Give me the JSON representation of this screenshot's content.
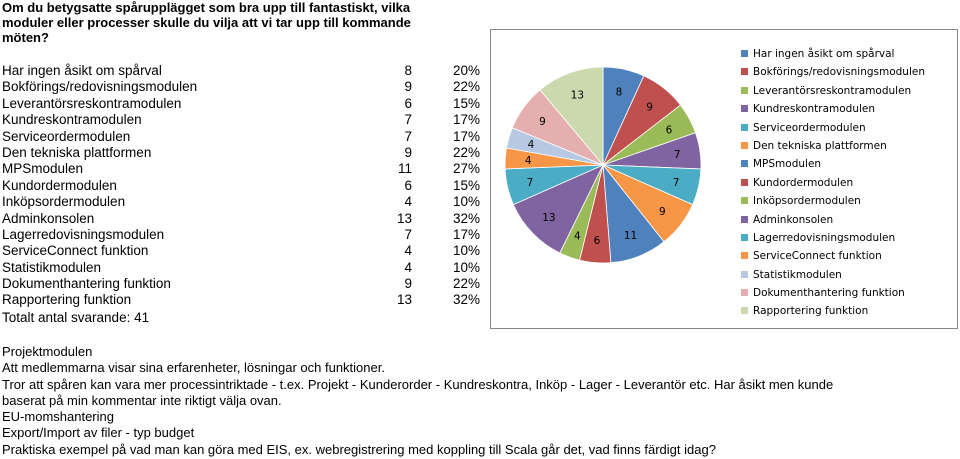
{
  "question": "Om du betygsatte spårupplägget som bra upp till fantastiskt, vilka moduler eller processer skulle du vilja att vi tar upp till kommande möten?",
  "rows": [
    {
      "label": "Har ingen åsikt om spårval",
      "count": "8",
      "pct": "20%"
    },
    {
      "label": "Bokförings/redovisningsmodulen",
      "count": "9",
      "pct": "22%"
    },
    {
      "label": "Leverantörsreskontramodulen",
      "count": "6",
      "pct": "15%"
    },
    {
      "label": "Kundreskontramodulen",
      "count": "7",
      "pct": "17%"
    },
    {
      "label": "Serviceordermodulen",
      "count": "7",
      "pct": "17%"
    },
    {
      "label": "Den tekniska plattformen",
      "count": "9",
      "pct": "22%"
    },
    {
      "label": "MPSmodulen",
      "count": "11",
      "pct": "27%"
    },
    {
      "label": "Kundordermodulen",
      "count": "6",
      "pct": "15%"
    },
    {
      "label": "Inköpsordermodulen",
      "count": "4",
      "pct": "10%"
    },
    {
      "label": "Adminkonsolen",
      "count": "13",
      "pct": "32%"
    },
    {
      "label": "Lagerredovisningsmodulen",
      "count": "7",
      "pct": "17%"
    },
    {
      "label": "ServiceConnect funktion",
      "count": "4",
      "pct": "10%"
    },
    {
      "label": "Statistikmodulen",
      "count": "4",
      "pct": "10%"
    },
    {
      "label": "Dokumenthantering funktion",
      "count": "9",
      "pct": "22%"
    },
    {
      "label": "Rapportering funktion",
      "count": "13",
      "pct": "32%"
    }
  ],
  "total": "Totalt antal svarande: 41",
  "chart_data": {
    "type": "pie",
    "labels": [
      "Har ingen åsikt om spårval",
      "Bokförings/redovisningsmodulen",
      "Leverantörsreskontramodulen",
      "Kundreskontramodulen",
      "Serviceordermodulen",
      "Den tekniska plattformen",
      "MPSmodulen",
      "Kundordermodulen",
      "Inköpsordermodulen",
      "Adminkonsolen",
      "Lagerredovisningsmodulen",
      "ServiceConnect funktion",
      "Statistikmodulen",
      "Dokumenthantering funktion",
      "Rapportering funktion"
    ],
    "values": [
      8,
      9,
      6,
      7,
      7,
      9,
      11,
      6,
      4,
      13,
      7,
      4,
      4,
      9,
      13
    ],
    "data_labels": [
      "8",
      "9",
      "6",
      "7",
      "7",
      "9",
      "11",
      "6",
      "4",
      "13",
      "7",
      "4",
      "4",
      "9",
      "13"
    ],
    "colors": [
      "#4F81BD",
      "#C0504D",
      "#9BBB59",
      "#8064A2",
      "#4BACC6",
      "#F79646",
      "#4F81BD",
      "#C0504D",
      "#9BBB59",
      "#8064A2",
      "#4BACC6",
      "#F79646",
      "#B7C9E2",
      "#E4AFAE",
      "#CCD9AF"
    ],
    "start": "12 o'clock",
    "direction": "clockwise",
    "legend_position": "right"
  },
  "comments": [
    "Projektmodulen",
    "Att medlemmarna visar sina erfarenheter, lösningar och funktioner.",
    "Tror att spåren kan vara mer processintriktade - t.ex. Projekt - Kunderorder - Kundreskontra, Inköp - Lager - Leverantör etc. Har åsikt men kunde baserat på min kommentar inte riktigt välja ovan.",
    "EU-momshantering",
    "Export/Import av filer - typ budget",
    "Praktiska exempel på vad man kan göra med EIS, ex. webregistrering med koppling till Scala går det, vad finns färdigt idag?"
  ]
}
